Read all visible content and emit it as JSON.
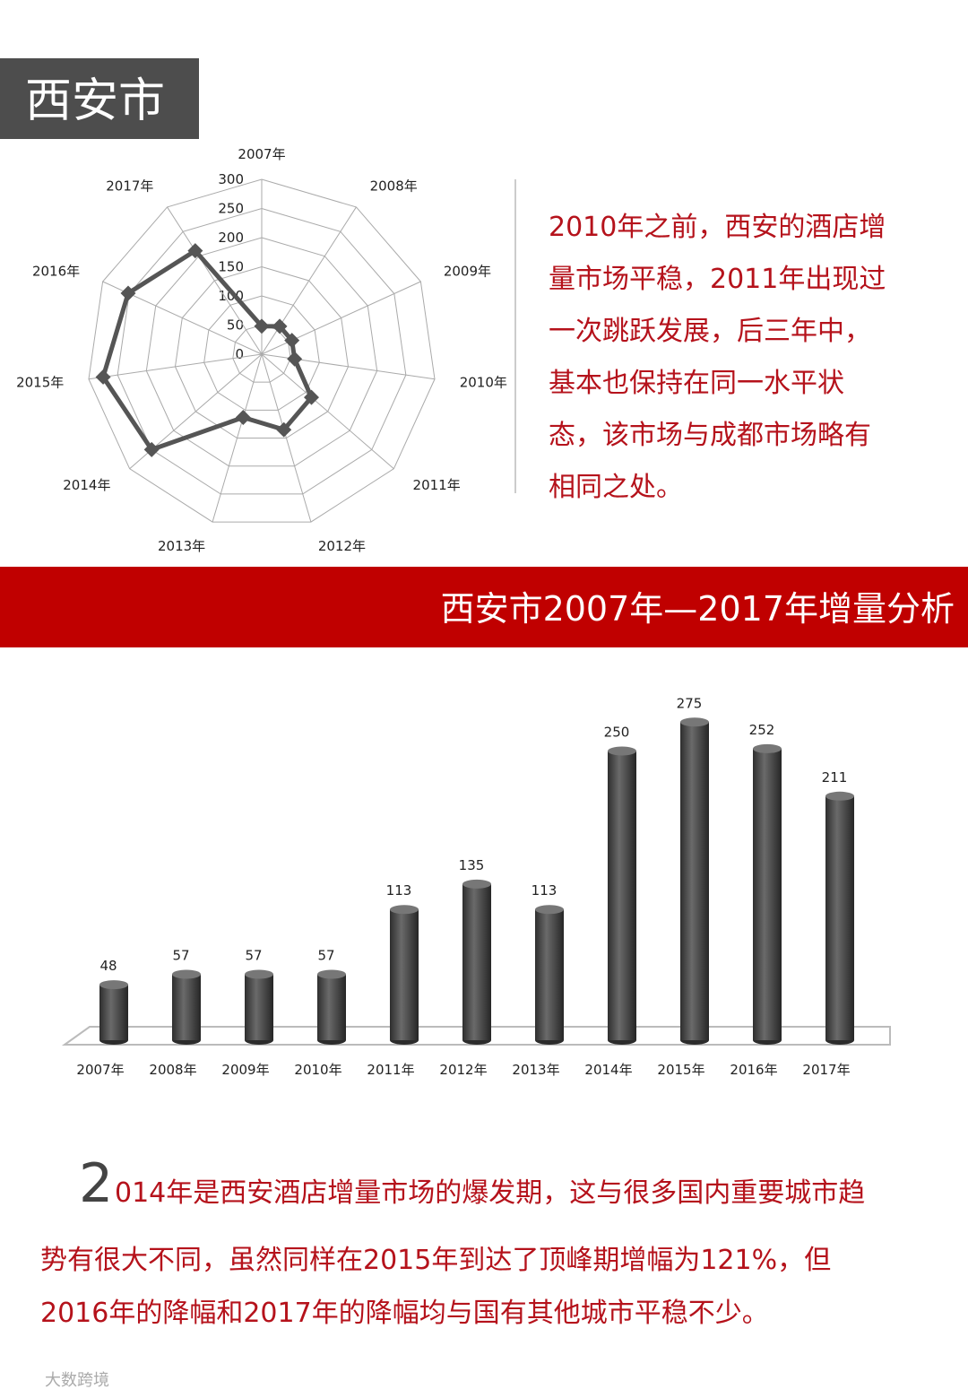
{
  "header": {
    "title": "西安市"
  },
  "paragraph1": [
    "2010年之前，西安的酒店增",
    "量市场平稳，2011年出现过",
    "一次跳跃发展，后三年中，",
    "基本也保持在同一水平状",
    "态，该市场与成都市场略有",
    "相同之处。"
  ],
  "banner": "西安市2007年—2017年增量分析",
  "chart_data": [
    {
      "type": "radar",
      "categories": [
        "2007年",
        "2008年",
        "2009年",
        "2010年",
        "2011年",
        "2012年",
        "2013年",
        "2014年",
        "2015年",
        "2016年",
        "2017年"
      ],
      "values": [
        48,
        57,
        57,
        57,
        113,
        135,
        113,
        250,
        275,
        252,
        211
      ],
      "color": "#555555",
      "ylim": [
        0,
        300
      ],
      "yticks": [
        0,
        50,
        100,
        150,
        200,
        250,
        300
      ],
      "grid": true
    },
    {
      "type": "bar",
      "categories": [
        "2007年",
        "2008年",
        "2009年",
        "2010年",
        "2011年",
        "2012年",
        "2013年",
        "2014年",
        "2015年",
        "2016年",
        "2017年"
      ],
      "values": [
        48,
        57,
        57,
        57,
        113,
        135,
        113,
        250,
        275,
        252,
        211
      ],
      "color": "#4a4a4a"
    }
  ],
  "paragraph2": {
    "initial": "2",
    "lines": [
      "014年是西安酒店增量市场的爆发期，这与很多国内重要城市趋",
      "势有很大不同，虽然同样在2015年到达了顶峰期增幅为121%，但",
      "2016年的降幅和2017年的降幅均与国有其他城市平稳不少。"
    ]
  },
  "watermark": "大数跨境"
}
